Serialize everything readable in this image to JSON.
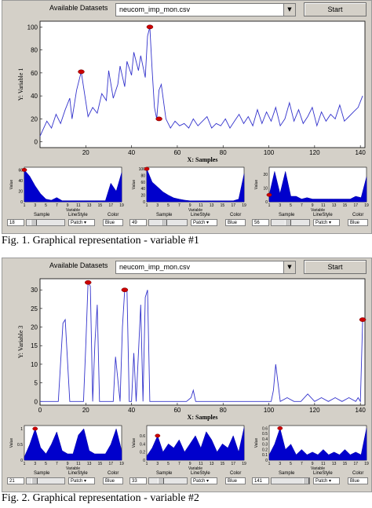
{
  "figures": [
    {
      "available_label": "Available Datasets",
      "dataset": "neucom_imp_mon.csv",
      "start_label": "Start",
      "caption": "Fig. 1. Graphical representation - variable #1",
      "main_chart": {
        "type": "line",
        "ylabel": "Y: Variable 1",
        "xlabel": "X: Samples",
        "xlim": [
          0,
          142
        ],
        "ylim": [
          -5,
          105
        ],
        "yticks": [
          0,
          20,
          40,
          60,
          80,
          100
        ],
        "xticks": [
          20,
          40,
          60,
          80,
          100,
          120,
          140
        ],
        "color": "#3333cc",
        "x": [
          0,
          3,
          5,
          7,
          9,
          11,
          13,
          14,
          16,
          18,
          19,
          21,
          23,
          25,
          27,
          29,
          30,
          32,
          34,
          35,
          37,
          38,
          40,
          41,
          43,
          44,
          46,
          47,
          48,
          49,
          50,
          51,
          52,
          53,
          55,
          57,
          59,
          61,
          63,
          65,
          67,
          69,
          71,
          73,
          75,
          77,
          79,
          81,
          83,
          85,
          87,
          89,
          91,
          93,
          95,
          97,
          99,
          101,
          103,
          105,
          107,
          109,
          111,
          113,
          115,
          117,
          119,
          121,
          123,
          125,
          127,
          129,
          131,
          133,
          135,
          137,
          139,
          141
        ],
        "y": [
          5,
          18,
          12,
          24,
          16,
          28,
          38,
          20,
          45,
          61,
          48,
          22,
          30,
          25,
          42,
          36,
          62,
          38,
          50,
          66,
          48,
          70,
          58,
          78,
          62,
          75,
          56,
          92,
          100,
          62,
          30,
          20,
          45,
          50,
          20,
          12,
          18,
          14,
          16,
          12,
          20,
          14,
          18,
          22,
          12,
          16,
          14,
          20,
          12,
          18,
          24,
          16,
          22,
          14,
          28,
          16,
          26,
          18,
          30,
          14,
          20,
          34,
          18,
          28,
          16,
          22,
          30,
          14,
          26,
          18,
          24,
          20,
          32,
          18,
          22,
          26,
          30,
          40
        ],
        "markers": [
          {
            "x": 18,
            "y": 61
          },
          {
            "x": 48,
            "y": 100
          },
          {
            "x": 52,
            "y": 20
          }
        ]
      },
      "panels": [
        {
          "ylabel": "Value",
          "xlabel": "Variable",
          "yticks": [
            0,
            20,
            40,
            60
          ],
          "ylim": [
            0,
            65
          ],
          "xticks": [
            "1",
            "3",
            "5",
            "7",
            "9",
            "11",
            "13",
            "15",
            "17",
            "19"
          ],
          "values": [
            60,
            48,
            30,
            15,
            5,
            3,
            8,
            2,
            2,
            2,
            2,
            2,
            2,
            2,
            2,
            2,
            35,
            20,
            55
          ],
          "marker": {
            "x": 1,
            "y": 60
          },
          "sample_label": "Sample",
          "sample_value": "18",
          "linestyle_label": "LineStyle",
          "linestyle_value": "Patch",
          "color_label": "Color",
          "color_value": "Blue",
          "slider_pos": 0.13
        },
        {
          "ylabel": "Value",
          "xlabel": "Variable",
          "yticks": [
            0,
            20,
            40,
            60,
            80,
            100
          ],
          "ylim": [
            0,
            105
          ],
          "xticks": [
            "1",
            "3",
            "5",
            "7",
            "9",
            "11",
            "13",
            "15",
            "17",
            "19"
          ],
          "values": [
            100,
            60,
            45,
            30,
            20,
            12,
            8,
            5,
            3,
            3,
            3,
            3,
            3,
            3,
            3,
            3,
            3,
            8,
            85
          ],
          "marker": {
            "x": 1,
            "y": 100
          },
          "sample_label": "Sample",
          "sample_value": "49",
          "linestyle_label": "LineStyle",
          "linestyle_value": "Patch",
          "color_label": "Color",
          "color_value": "Blue",
          "slider_pos": 0.35
        },
        {
          "ylabel": "Value",
          "xlabel": "Variable",
          "yticks": [
            0,
            10,
            20
          ],
          "ylim": [
            0,
            25
          ],
          "xticks": [
            "1",
            "3",
            "5",
            "7",
            "9",
            "11",
            "13",
            "15",
            "17",
            "19"
          ],
          "values": [
            5,
            22,
            6,
            22,
            4,
            4,
            2,
            3,
            2,
            2,
            2,
            2,
            2,
            2,
            2,
            2,
            4,
            3,
            18
          ],
          "marker": {
            "x": 1,
            "y": 5
          },
          "sample_label": "Sample",
          "sample_value": "56",
          "linestyle_label": "LineStyle",
          "linestyle_value": "Patch",
          "color_label": "Color",
          "color_value": "Blue",
          "slider_pos": 0.4
        }
      ]
    },
    {
      "available_label": "Available Datasets",
      "dataset": "neucom_imp_mon.csv",
      "start_label": "Start",
      "caption": "Fig. 2. Graphical representation - variable #2",
      "main_chart": {
        "type": "line",
        "ylabel": "Y: Variable 3",
        "xlabel": "X: Samples",
        "xlim": [
          0,
          142
        ],
        "ylim": [
          -1,
          33
        ],
        "yticks": [
          0,
          5,
          10,
          15,
          20,
          25,
          30
        ],
        "xticks": [
          0,
          20,
          40,
          60,
          80,
          100,
          120,
          140
        ],
        "color": "#3333cc",
        "x": [
          0,
          4,
          6,
          8,
          10,
          11,
          13,
          15,
          17,
          19,
          20,
          21,
          22,
          23,
          24,
          25,
          26,
          28,
          30,
          32,
          33,
          35,
          36,
          37,
          38,
          39,
          40,
          41,
          42,
          44,
          45,
          46,
          47,
          48,
          49,
          50,
          52,
          55,
          58,
          61,
          64,
          66,
          67,
          68,
          70,
          73,
          76,
          80,
          84,
          88,
          92,
          96,
          99,
          101,
          102,
          103,
          104,
          105,
          108,
          111,
          114,
          117,
          120,
          123,
          126,
          129,
          132,
          135,
          138,
          139,
          140,
          141
        ],
        "y": [
          0,
          0,
          0,
          0,
          21,
          22,
          0,
          0,
          0,
          0,
          15,
          32,
          31,
          0,
          16,
          26,
          0,
          0,
          0,
          0,
          12,
          0,
          20,
          30,
          30,
          0,
          0,
          13,
          0,
          26,
          0,
          28,
          30,
          0,
          0,
          0,
          0,
          0,
          0,
          0,
          0,
          1,
          3,
          0,
          0,
          0,
          0,
          0,
          0,
          0,
          0,
          0,
          0,
          0,
          3,
          10,
          5,
          0,
          1,
          0,
          0,
          2,
          0,
          1,
          0,
          1,
          0,
          1,
          0,
          1,
          0,
          22
        ],
        "markers": [
          {
            "x": 21,
            "y": 32
          },
          {
            "x": 37,
            "y": 30
          },
          {
            "x": 141,
            "y": 22
          }
        ]
      },
      "panels": [
        {
          "ylabel": "Value",
          "xlabel": "Variable",
          "yticks": [
            0,
            0.5,
            1
          ],
          "ylim": [
            0,
            1.1
          ],
          "xticks": [
            "1",
            "3",
            "5",
            "7",
            "9",
            "11",
            "13",
            "15",
            "17",
            "19"
          ],
          "values": [
            0.1,
            0.5,
            1.0,
            0.4,
            0.2,
            0.5,
            0.9,
            0.3,
            0.2,
            0.2,
            0.8,
            1.0,
            0.3,
            0.2,
            0.2,
            0.2,
            0.5,
            1.0,
            0.3
          ],
          "marker": {
            "x": 3,
            "y": 1.0
          },
          "sample_label": "Sample",
          "sample_value": "21",
          "linestyle_label": "LineStyle",
          "linestyle_value": "Patch",
          "color_label": "Color",
          "color_value": "Blue",
          "slider_pos": 0.15
        },
        {
          "ylabel": "Value",
          "xlabel": "Variable",
          "yticks": [
            0,
            0.2,
            0.4,
            0.6
          ],
          "ylim": [
            0,
            0.85
          ],
          "xticks": [
            "1",
            "3",
            "5",
            "7",
            "9",
            "11",
            "13",
            "15",
            "17",
            "19"
          ],
          "values": [
            0.1,
            0.3,
            0.6,
            0.2,
            0.4,
            0.3,
            0.5,
            0.2,
            0.4,
            0.6,
            0.3,
            0.7,
            0.5,
            0.2,
            0.4,
            0.3,
            0.6,
            0.2,
            0.8
          ],
          "marker": {
            "x": 3,
            "y": 0.6
          },
          "sample_label": "Sample",
          "sample_value": "33",
          "linestyle_label": "LineStyle",
          "linestyle_value": "Patch",
          "color_label": "Color",
          "color_value": "Blue",
          "slider_pos": 0.25
        },
        {
          "ylabel": "Value",
          "xlabel": "Variable",
          "yticks": [
            0,
            0.1,
            0.2,
            0.3,
            0.4,
            0.5,
            0.6
          ],
          "ylim": [
            0,
            0.65
          ],
          "xticks": [
            "1",
            "3",
            "5",
            "7",
            "9",
            "11",
            "13",
            "15",
            "17",
            "19"
          ],
          "values": [
            0.1,
            0.3,
            0.6,
            0.2,
            0.3,
            0.1,
            0.2,
            0.1,
            0.15,
            0.1,
            0.2,
            0.1,
            0.15,
            0.1,
            0.2,
            0.1,
            0.15,
            0.1,
            0.6
          ],
          "marker": {
            "x": 3,
            "y": 0.6
          },
          "sample_label": "Sample",
          "sample_value": "141",
          "linestyle_label": "LineStyle",
          "linestyle_value": "Patch",
          "color_label": "Color",
          "color_value": "Blue",
          "slider_pos": 0.95
        }
      ]
    }
  ]
}
